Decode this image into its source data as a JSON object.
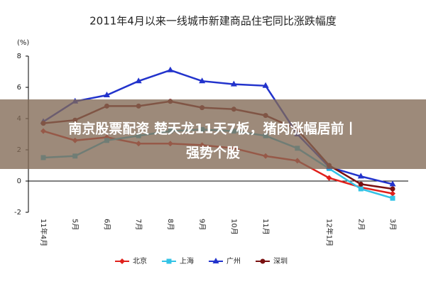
{
  "chart_data": {
    "type": "line",
    "title": "2011年4月以来一线城市新建商品住宅同比涨跌幅度",
    "y_label": "(%)",
    "categories": [
      "11年4月",
      "5月",
      "6月",
      "7月",
      "8月",
      "9月",
      "10月",
      "11月",
      null,
      "12年1月",
      "2月",
      "3月"
    ],
    "series": [
      {
        "name": "北京",
        "color": "#e0201b",
        "marker": "diamond",
        "values": [
          3.2,
          2.6,
          2.8,
          2.4,
          2.4,
          2.3,
          2.1,
          1.6,
          1.3,
          0.2,
          -0.4,
          -0.8
        ]
      },
      {
        "name": "上海",
        "color": "#33c3e6",
        "marker": "square",
        "values": [
          1.5,
          1.6,
          2.6,
          2.9,
          3.2,
          3.3,
          3.2,
          2.9,
          2.1,
          0.8,
          -0.5,
          -1.1
        ]
      },
      {
        "name": "广州",
        "color": "#2233cc",
        "marker": "triangle",
        "values": [
          3.8,
          5.1,
          5.5,
          6.4,
          7.1,
          6.4,
          6.2,
          6.1,
          3.0,
          0.9,
          0.3,
          -0.2
        ]
      },
      {
        "name": "深圳",
        "color": "#7a1010",
        "marker": "circle",
        "values": [
          3.7,
          3.9,
          4.8,
          4.8,
          5.1,
          4.7,
          4.6,
          4.2,
          3.3,
          1.0,
          -0.2,
          -0.5
        ]
      }
    ],
    "ylim": [
      -2,
      8
    ],
    "yticks": [
      -2,
      0,
      2,
      4,
      6,
      8
    ],
    "grid": false,
    "legend": "bottom"
  },
  "banner": {
    "lines": [
      "南京股票配资 楚天龙11天7板，猪肉涨幅居前丨",
      "强势个股"
    ]
  }
}
